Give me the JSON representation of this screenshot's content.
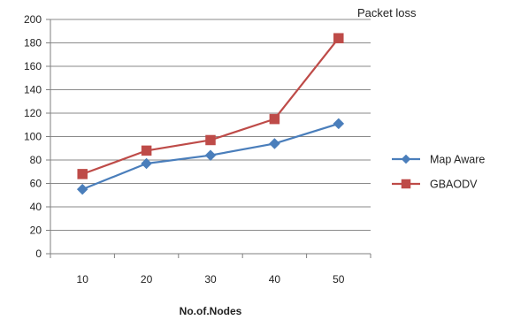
{
  "chart_data": {
    "type": "line",
    "title": "Packet loss",
    "xlabel": "No.of.Nodes",
    "ylabel": "",
    "categories": [
      "10",
      "20",
      "30",
      "40",
      "50"
    ],
    "ylim": [
      0,
      200
    ],
    "yticks": [
      0,
      20,
      40,
      60,
      80,
      100,
      120,
      140,
      160,
      180,
      200
    ],
    "grid": true,
    "legend_position": "right",
    "series": [
      {
        "name": "Map Aware",
        "values": [
          55,
          77,
          84,
          94,
          111
        ],
        "color": "#4a7ebb",
        "marker": "diamond"
      },
      {
        "name": "GBAODV",
        "values": [
          68,
          88,
          97,
          115,
          184
        ],
        "color": "#be4b48",
        "marker": "square"
      }
    ]
  }
}
